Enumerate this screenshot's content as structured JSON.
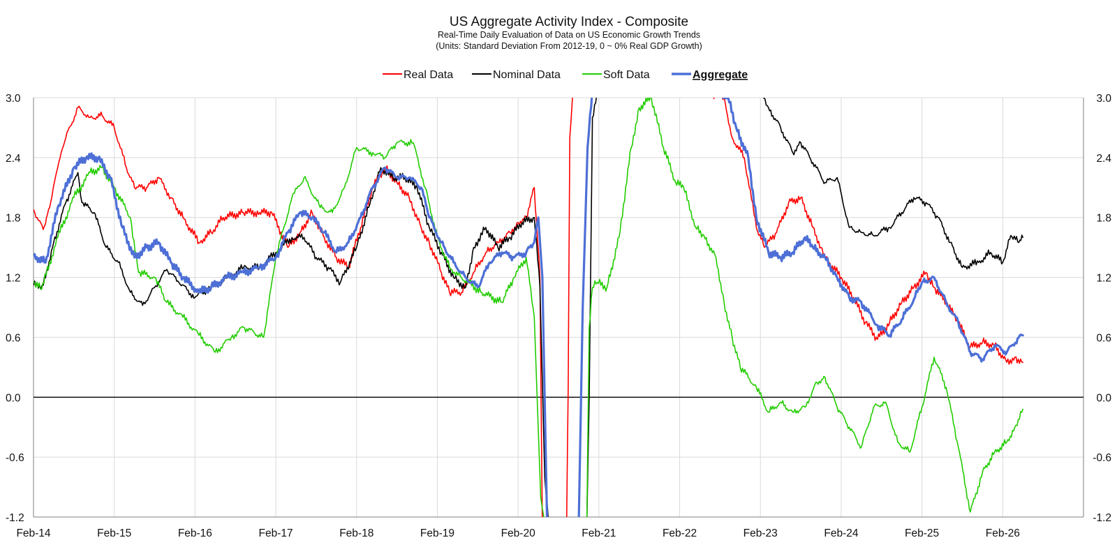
{
  "chart_data": {
    "type": "line",
    "title": "US Aggregate Activity Index - Composite",
    "subtitle_lines": [
      "Real-Time Daily Evaluation of Data on US Economic Growth Trends",
      "(Units: Standard Deviation From 2012-19, 0 ~ 0% Real GDP Growth)"
    ],
    "xlabel": "",
    "ylabel": "",
    "x_unit": "years since Feb-14",
    "x_range": [
      0,
      13
    ],
    "ylim": [
      -1.2,
      3.0
    ],
    "y_ticks": [
      3.0,
      2.4,
      1.8,
      1.2,
      0.6,
      0.0,
      -0.6,
      -1.2
    ],
    "y_tick_labels": [
      "3.0",
      "2.4",
      "1.8",
      "1.2",
      "0.6",
      "0.0",
      "-0.6",
      "-1.2"
    ],
    "x_ticks": [
      0,
      1,
      2,
      3,
      4,
      5,
      6,
      7,
      8,
      9,
      10,
      11,
      12
    ],
    "x_tick_labels": [
      "Feb-14",
      "Feb-15",
      "Feb-16",
      "Feb-17",
      "Feb-18",
      "Feb-19",
      "Feb-20",
      "Feb-21",
      "Feb-22",
      "Feb-23",
      "Feb-24",
      "Feb-25",
      "Feb-26"
    ],
    "grid": true,
    "legend_position": "top-center",
    "series": [
      {
        "name": "Real Data",
        "color": "#ff0000",
        "width": 1.6,
        "x": [
          0,
          0.12,
          0.2,
          0.3,
          0.4,
          0.55,
          0.7,
          0.85,
          1.0,
          1.15,
          1.25,
          1.4,
          1.55,
          1.7,
          1.85,
          2.05,
          2.2,
          2.35,
          2.6,
          2.8,
          2.95,
          3.15,
          3.3,
          3.45,
          3.6,
          3.75,
          3.9,
          4.05,
          4.2,
          4.35,
          4.5,
          4.65,
          4.8,
          4.9,
          5.05,
          5.15,
          5.3,
          5.45,
          5.6,
          5.75,
          5.9,
          6.0,
          6.1,
          6.2,
          6.27,
          6.3,
          6.35,
          6.6,
          6.62,
          6.64,
          6.68,
          7.0,
          7.3,
          7.6,
          7.9,
          8.2,
          8.55,
          8.65,
          8.8,
          8.95,
          9.05,
          9.2,
          9.35,
          9.5,
          9.65,
          9.75,
          9.85,
          10.0,
          10.15,
          10.3,
          10.45,
          10.6,
          10.75,
          10.9,
          11.05,
          11.15,
          11.3,
          11.45,
          11.6,
          11.75,
          11.9,
          12.05,
          12.15,
          12.25
        ],
        "y": [
          1.88,
          1.68,
          1.9,
          2.3,
          2.6,
          2.9,
          2.8,
          2.82,
          2.7,
          2.3,
          2.1,
          2.1,
          2.2,
          2.0,
          1.8,
          1.55,
          1.65,
          1.8,
          1.85,
          1.85,
          1.85,
          1.5,
          1.65,
          1.85,
          1.6,
          1.4,
          1.3,
          1.7,
          2.1,
          2.3,
          2.15,
          2.0,
          1.7,
          1.55,
          1.25,
          1.05,
          1.05,
          1.25,
          1.45,
          1.55,
          1.65,
          1.75,
          1.8,
          2.1,
          1.2,
          -1.3,
          -1.3,
          -1.3,
          0.1,
          2.6,
          3.1,
          3.1,
          3.1,
          3.1,
          3.1,
          3.1,
          3.0,
          2.6,
          2.4,
          1.7,
          1.5,
          1.65,
          1.95,
          2.0,
          1.7,
          1.5,
          1.35,
          1.2,
          1.0,
          0.75,
          0.58,
          0.75,
          0.95,
          1.1,
          1.25,
          1.1,
          0.95,
          0.75,
          0.5,
          0.55,
          0.52,
          0.35,
          0.4,
          0.35
        ]
      },
      {
        "name": "Nominal Data",
        "color": "#000000",
        "width": 1.6,
        "x": [
          0,
          0.12,
          0.25,
          0.4,
          0.55,
          0.6,
          0.75,
          0.9,
          1.05,
          1.2,
          1.35,
          1.5,
          1.65,
          1.8,
          2.0,
          2.2,
          2.4,
          2.6,
          2.8,
          3.0,
          3.2,
          3.35,
          3.5,
          3.65,
          3.8,
          4.0,
          4.15,
          4.3,
          4.45,
          4.6,
          4.75,
          4.9,
          5.05,
          5.2,
          5.35,
          5.45,
          5.6,
          5.75,
          5.9,
          6.05,
          6.2,
          6.27,
          6.33,
          6.38,
          6.45,
          6.85,
          6.88,
          6.92,
          7.0,
          8.5,
          9.0,
          9.1,
          9.25,
          9.4,
          9.5,
          9.65,
          9.8,
          9.95,
          10.1,
          10.25,
          10.4,
          10.6,
          10.75,
          10.9,
          11.05,
          11.2,
          11.35,
          11.5,
          11.7,
          11.85,
          12.0,
          12.1,
          12.2,
          12.25
        ],
        "y": [
          1.12,
          1.12,
          1.55,
          1.95,
          2.25,
          1.95,
          1.85,
          1.5,
          1.35,
          1.05,
          0.92,
          1.1,
          1.28,
          1.15,
          1.0,
          1.1,
          1.2,
          1.3,
          1.3,
          1.45,
          1.6,
          1.6,
          1.4,
          1.3,
          1.15,
          1.5,
          1.9,
          2.3,
          2.2,
          2.2,
          2.1,
          1.7,
          1.45,
          1.2,
          1.1,
          1.5,
          1.7,
          1.5,
          1.6,
          1.75,
          1.8,
          1.1,
          -0.8,
          -1.3,
          -1.3,
          -1.3,
          0.0,
          2.8,
          3.1,
          3.1,
          3.1,
          2.9,
          2.7,
          2.45,
          2.55,
          2.35,
          2.15,
          2.2,
          1.7,
          1.65,
          1.62,
          1.7,
          1.85,
          2.0,
          1.95,
          1.8,
          1.55,
          1.3,
          1.35,
          1.45,
          1.35,
          1.62,
          1.55,
          1.6
        ]
      },
      {
        "name": "Soft Data",
        "color": "#22cc00",
        "width": 1.6,
        "x": [
          0,
          0.1,
          0.3,
          0.5,
          0.7,
          0.85,
          1.0,
          1.2,
          1.3,
          1.5,
          1.65,
          1.85,
          2.05,
          2.25,
          2.45,
          2.6,
          2.85,
          3.0,
          3.2,
          3.35,
          3.55,
          3.7,
          3.85,
          4.0,
          4.2,
          4.35,
          4.5,
          4.7,
          4.85,
          5.0,
          5.15,
          5.3,
          5.55,
          5.8,
          5.95,
          6.1,
          6.2,
          6.28,
          6.33,
          6.38,
          6.45,
          6.85,
          6.88,
          6.92,
          6.98,
          7.1,
          7.25,
          7.4,
          7.5,
          7.65,
          7.8,
          7.95,
          8.05,
          8.2,
          8.3,
          8.45,
          8.55,
          8.65,
          8.75,
          8.95,
          9.1,
          9.25,
          9.4,
          9.55,
          9.7,
          9.8,
          9.95,
          10.1,
          10.25,
          10.4,
          10.55,
          10.7,
          10.85,
          11.0,
          11.15,
          11.3,
          11.45,
          11.6,
          11.75,
          11.9,
          12.05,
          12.15,
          12.25
        ],
        "y": [
          1.15,
          1.08,
          1.6,
          2.0,
          2.25,
          2.3,
          2.1,
          1.8,
          1.25,
          1.2,
          0.95,
          0.8,
          0.62,
          0.45,
          0.6,
          0.7,
          0.6,
          1.4,
          2.0,
          2.2,
          1.9,
          1.85,
          2.1,
          2.5,
          2.45,
          2.4,
          2.55,
          2.55,
          2.1,
          1.6,
          1.3,
          1.2,
          1.05,
          0.95,
          1.2,
          1.4,
          0.8,
          -1.0,
          -1.3,
          -1.3,
          -1.3,
          -1.3,
          0.7,
          1.1,
          1.15,
          1.1,
          1.6,
          2.5,
          2.9,
          3.0,
          2.5,
          2.15,
          2.1,
          1.7,
          1.62,
          1.4,
          0.95,
          0.6,
          0.3,
          0.1,
          -0.15,
          -0.05,
          -0.15,
          -0.1,
          0.15,
          0.2,
          -0.1,
          -0.3,
          -0.5,
          -0.1,
          -0.05,
          -0.45,
          -0.55,
          -0.1,
          0.4,
          0.1,
          -0.5,
          -1.15,
          -0.75,
          -0.55,
          -0.45,
          -0.3,
          -0.12
        ]
      },
      {
        "name": "Aggregate",
        "color": "#4d6fd6",
        "width": 3.2,
        "x": [
          0,
          0.15,
          0.3,
          0.5,
          0.65,
          0.8,
          0.95,
          1.1,
          1.25,
          1.4,
          1.55,
          1.7,
          1.85,
          2.05,
          2.2,
          2.4,
          2.6,
          2.8,
          3.0,
          3.15,
          3.3,
          3.45,
          3.6,
          3.75,
          3.9,
          4.05,
          4.2,
          4.35,
          4.5,
          4.65,
          4.8,
          4.9,
          5.05,
          5.2,
          5.35,
          5.5,
          5.65,
          5.8,
          5.95,
          6.1,
          6.2,
          6.25,
          6.3,
          6.36,
          6.42,
          6.55,
          6.7,
          6.75,
          6.8,
          6.86,
          6.92,
          7.1,
          7.4,
          7.7,
          8.0,
          8.3,
          8.6,
          8.7,
          8.85,
          8.95,
          9.1,
          9.25,
          9.4,
          9.55,
          9.65,
          9.8,
          9.95,
          10.1,
          10.25,
          10.45,
          10.6,
          10.75,
          10.9,
          11.0,
          11.15,
          11.3,
          11.45,
          11.6,
          11.75,
          11.9,
          12.05,
          12.2,
          12.25
        ],
        "y": [
          1.42,
          1.35,
          1.9,
          2.3,
          2.4,
          2.4,
          2.2,
          1.7,
          1.4,
          1.5,
          1.55,
          1.35,
          1.2,
          1.05,
          1.1,
          1.2,
          1.25,
          1.3,
          1.4,
          1.65,
          1.85,
          1.8,
          1.65,
          1.45,
          1.55,
          1.8,
          2.1,
          2.3,
          2.2,
          2.2,
          2.1,
          1.8,
          1.55,
          1.35,
          1.2,
          1.1,
          1.35,
          1.45,
          1.4,
          1.45,
          1.55,
          1.8,
          1.2,
          -1.3,
          -1.3,
          -1.3,
          -1.3,
          -1.3,
          0.9,
          2.5,
          3.1,
          3.1,
          3.1,
          3.1,
          3.1,
          3.1,
          3.0,
          2.7,
          2.4,
          1.8,
          1.45,
          1.4,
          1.45,
          1.6,
          1.5,
          1.4,
          1.2,
          1.0,
          0.95,
          0.72,
          0.62,
          0.78,
          0.98,
          1.15,
          1.2,
          0.95,
          0.75,
          0.45,
          0.38,
          0.52,
          0.45,
          0.6,
          0.62
        ]
      }
    ]
  }
}
